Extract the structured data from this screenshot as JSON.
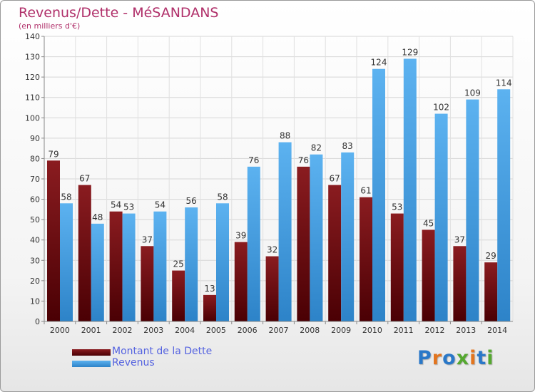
{
  "chart_data": {
    "type": "bar",
    "title": "Revenus/Dette - MéSANDANS",
    "subtitle": "(en milliers d'€)",
    "categories": [
      "2000",
      "2001",
      "2002",
      "2003",
      "2004",
      "2005",
      "2006",
      "2007",
      "2008",
      "2009",
      "2010",
      "2011",
      "2012",
      "2013",
      "2014"
    ],
    "series": [
      {
        "name": "Montant de la Dette",
        "color": "#7a1418",
        "values": [
          79,
          67,
          54,
          37,
          25,
          13,
          39,
          32,
          76,
          67,
          61,
          53,
          45,
          37,
          29
        ]
      },
      {
        "name": "Revenus",
        "color": "#4aa3e6",
        "values": [
          58,
          48,
          53,
          54,
          56,
          58,
          76,
          88,
          82,
          83,
          124,
          129,
          102,
          109,
          114
        ]
      }
    ],
    "ylim": [
      0,
      140
    ],
    "yticks": [
      0,
      10,
      20,
      30,
      40,
      50,
      60,
      70,
      80,
      90,
      100,
      110,
      120,
      130,
      140
    ],
    "grid": true,
    "legend_position": "bottom-left"
  },
  "logo": {
    "letters": [
      {
        "char": "P",
        "color": "#2a78c8"
      },
      {
        "char": "r",
        "color": "#e2751f"
      },
      {
        "char": "o",
        "color": "#2a78c8"
      },
      {
        "char": "x",
        "color": "#55a830"
      },
      {
        "char": "i",
        "color": "#e2751f"
      },
      {
        "char": "t",
        "color": "#2a78c8"
      },
      {
        "char": "i",
        "color": "#55a830"
      }
    ]
  }
}
